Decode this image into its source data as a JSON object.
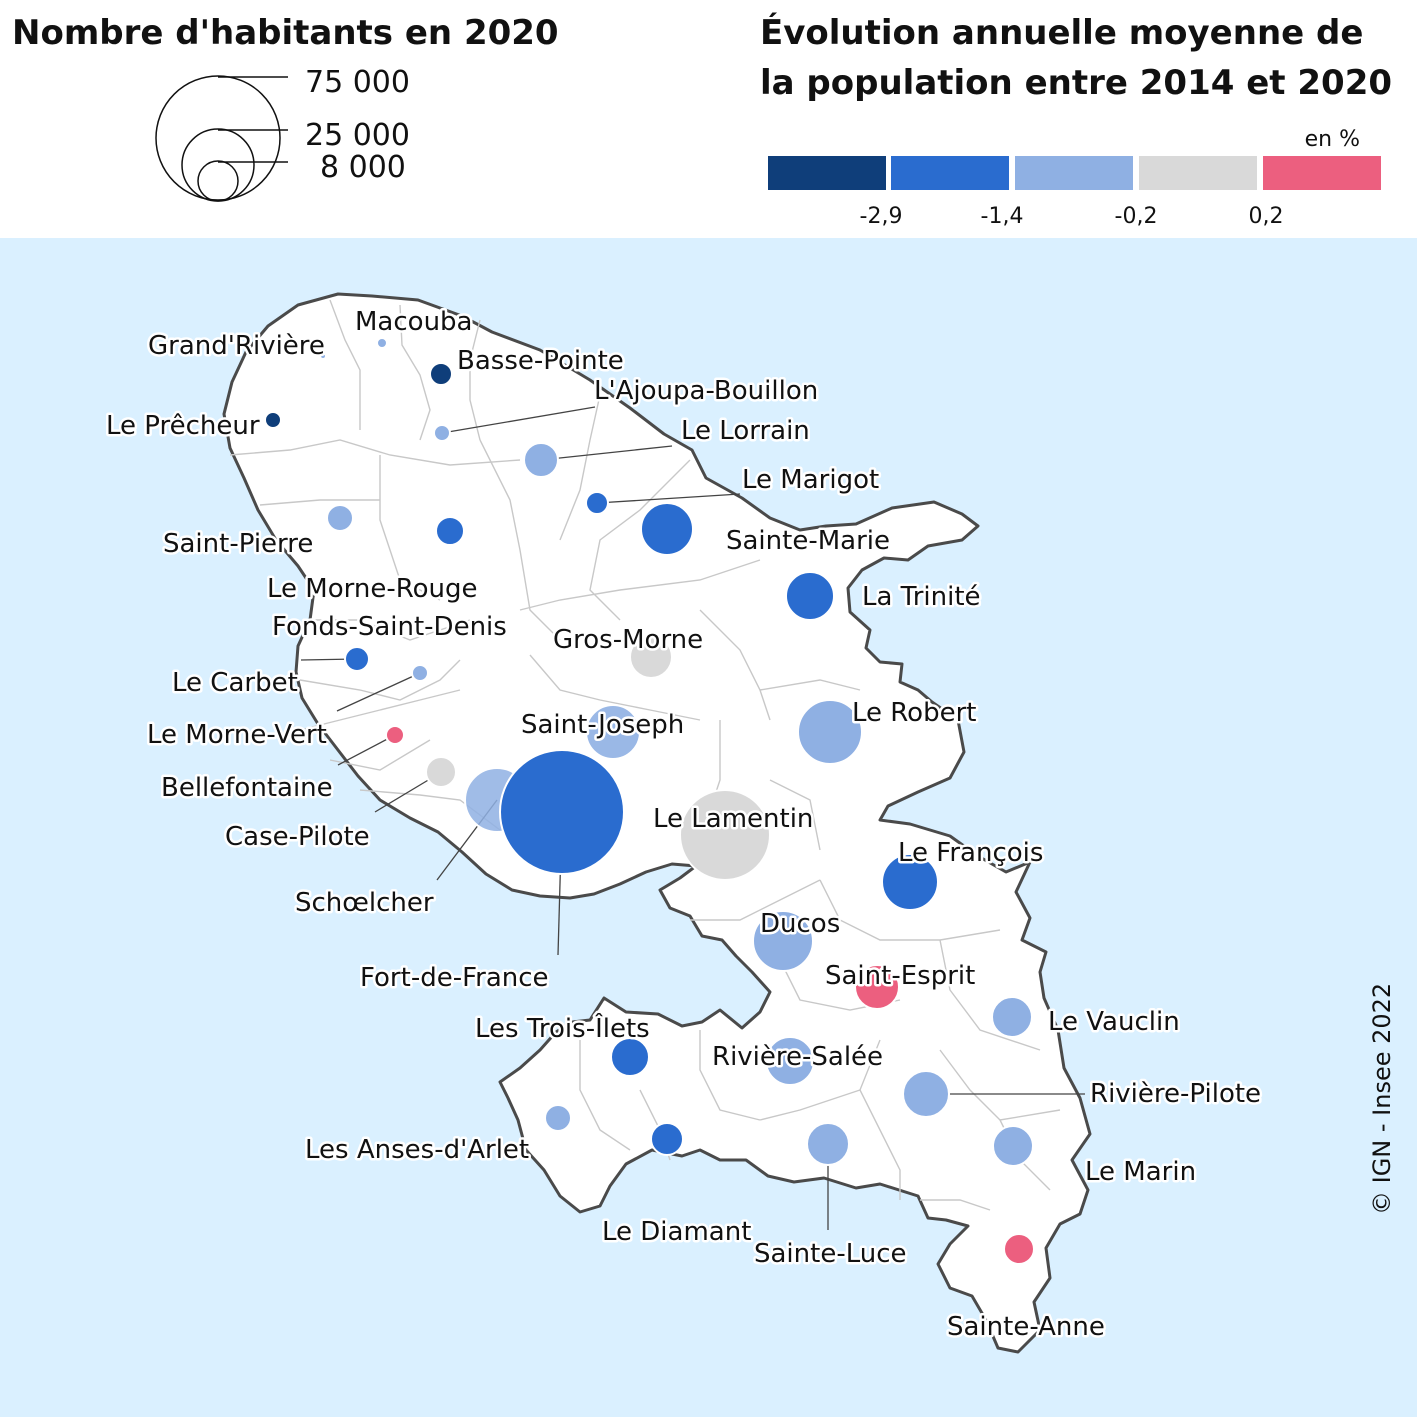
{
  "size_legend": {
    "title": "Nombre d'habitants en 2020",
    "values": [
      "75  000",
      "25  000",
      "8  000"
    ]
  },
  "color_legend": {
    "title_line1": "Évolution annuelle moyenne de",
    "title_line2": "la population entre 2014 et 2020",
    "unit": "en %",
    "breaks": [
      "-2,9",
      "-1,4",
      "-0,2",
      "0,2"
    ],
    "colors": [
      "#0f3e7a",
      "#2a6ccf",
      "#8fb0e3",
      "#d9d9d9",
      "#ec5f7f"
    ]
  },
  "colors": {
    "sea": "#daf0ff",
    "land": "#ffffff",
    "coast": "#4a4a4a",
    "border": "#c8c8c8"
  },
  "communes": [
    {
      "name": "Macouba",
      "class": 2
    },
    {
      "name": "Grand'Rivière",
      "class": 2
    },
    {
      "name": "Basse-Pointe",
      "class": 0
    },
    {
      "name": "L'Ajoupa-Bouillon",
      "class": 2
    },
    {
      "name": "Le Prêcheur",
      "class": 0
    },
    {
      "name": "Le Lorrain",
      "class": 2
    },
    {
      "name": "Le Marigot",
      "class": 1
    },
    {
      "name": "Saint-Pierre",
      "class": 2
    },
    {
      "name": "Le Morne-Rouge",
      "class": 1
    },
    {
      "name": "Sainte-Marie",
      "class": 1
    },
    {
      "name": "La Trinité",
      "class": 1
    },
    {
      "name": "Fonds-Saint-Denis",
      "class": 2
    },
    {
      "name": "Gros-Morne",
      "class": 3
    },
    {
      "name": "Le Carbet",
      "class": 1
    },
    {
      "name": "Le Morne-Vert",
      "class": 4
    },
    {
      "name": "Saint-Joseph",
      "class": 2
    },
    {
      "name": "Le Robert",
      "class": 2
    },
    {
      "name": "Bellefontaine",
      "class": 3
    },
    {
      "name": "Case-Pilote",
      "class": 2
    },
    {
      "name": "Le Lamentin",
      "class": 3
    },
    {
      "name": "Le François",
      "class": 1
    },
    {
      "name": "Schœlcher",
      "class": 2
    },
    {
      "name": "Ducos",
      "class": 2
    },
    {
      "name": "Fort-de-France",
      "class": 1
    },
    {
      "name": "Saint-Esprit",
      "class": 4
    },
    {
      "name": "Le Vauclin",
      "class": 2
    },
    {
      "name": "Les Trois-Îlets",
      "class": 1
    },
    {
      "name": "Rivière-Salée",
      "class": 2
    },
    {
      "name": "Rivière-Pilote",
      "class": 2
    },
    {
      "name": "Les Anses-d'Arlet",
      "class": 2
    },
    {
      "name": "Le Marin",
      "class": 2
    },
    {
      "name": "Le Diamant",
      "class": 1
    },
    {
      "name": "Sainte-Luce",
      "class": 2
    },
    {
      "name": "Sainte-Anne",
      "class": 4
    }
  ],
  "copyright": "© IGN - Insee 2022"
}
